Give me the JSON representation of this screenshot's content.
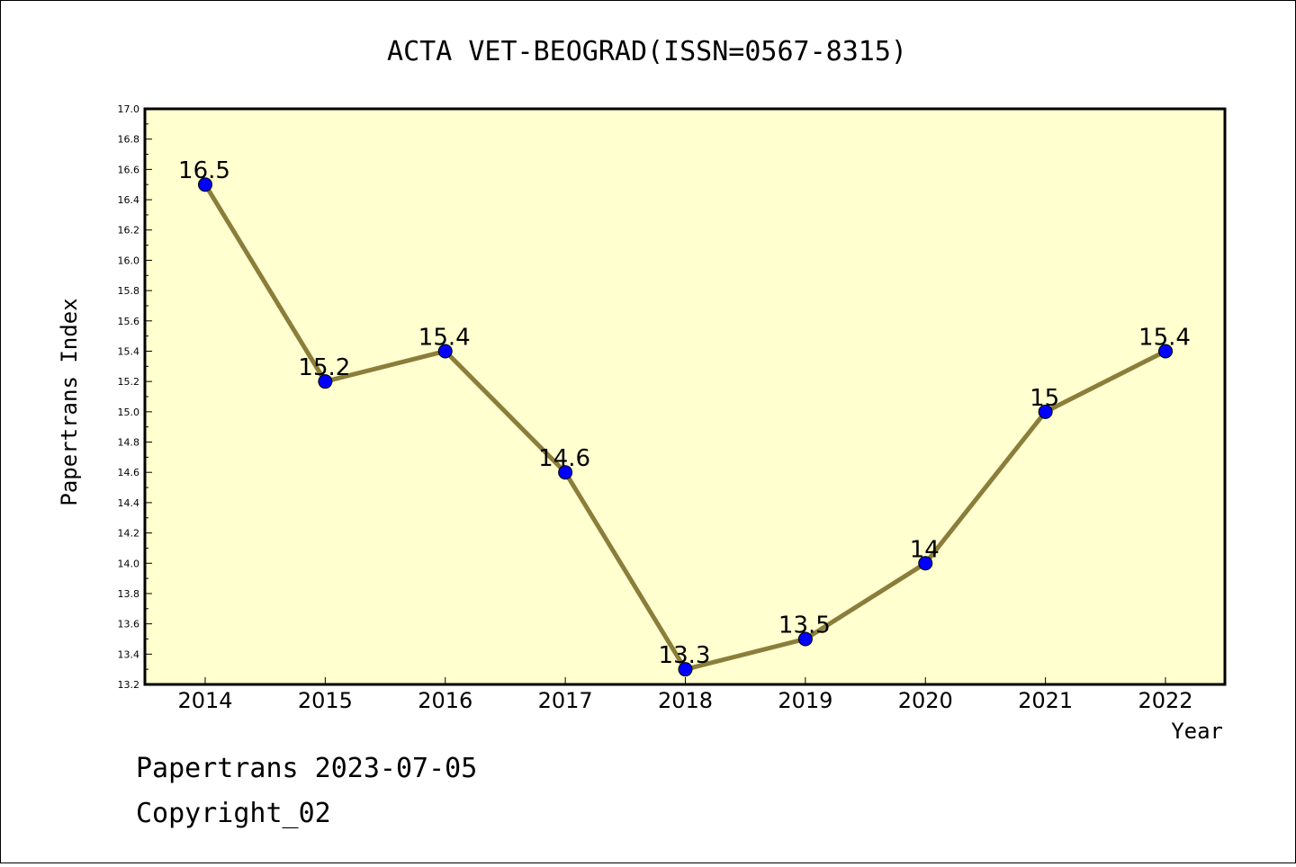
{
  "chart_data": {
    "type": "line",
    "title": "ACTA VET-BEOGRAD(ISSN=0567-8315)",
    "xlabel": "Year",
    "ylabel": "Papertrans Index",
    "categories": [
      "2014",
      "2015",
      "2016",
      "2017",
      "2018",
      "2019",
      "2020",
      "2021",
      "2022"
    ],
    "series": [
      {
        "values": [
          16.5,
          15.2,
          15.4,
          14.6,
          13.3,
          13.5,
          14.0,
          15.0,
          15.4
        ],
        "labels": [
          "16.5",
          "15.2",
          "15.4",
          "14.6",
          "13.3",
          "13.5",
          "14",
          "15",
          "15.4"
        ]
      }
    ],
    "ylim": [
      13.2,
      17.0
    ],
    "yticks": [
      "13.2",
      "13.4",
      "13.6",
      "13.8",
      "14.0",
      "14.2",
      "14.4",
      "14.6",
      "14.8",
      "15.0",
      "15.2",
      "15.4",
      "15.6",
      "15.8",
      "16.0",
      "16.2",
      "16.4",
      "16.6",
      "16.8",
      "17.0"
    ],
    "grid": false,
    "colors": {
      "plot_background": "#ffffd0",
      "line": "#8b7d3a",
      "marker": "#0000ff"
    }
  },
  "footer": {
    "source": "Papertrans 2023-07-05",
    "copyright": "Copyright_02"
  }
}
